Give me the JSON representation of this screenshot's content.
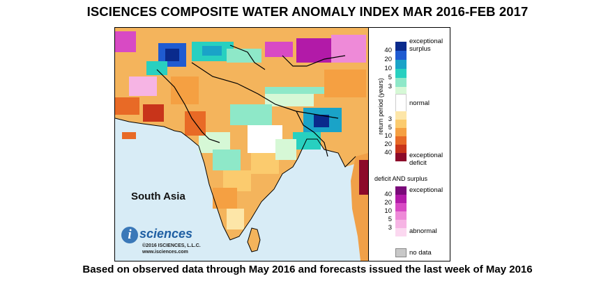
{
  "title": "ISCIENCES COMPOSITE WATER ANOMALY INDEX MAR 2016-FEB 2017",
  "caption": "Based on observed data through May 2016 and forecasts issued the last week of May 2016",
  "map": {
    "region_label": "South Asia",
    "logo": {
      "mark": "i",
      "word": "sciences",
      "copyright": "©2016  ISCIENCES, L.L.C.",
      "url": "www.isciences.com"
    }
  },
  "legend": {
    "axis_label": "return period (years)",
    "surplus_label_1": "exceptional",
    "surplus_label_2": "surplus",
    "normal_label": "normal",
    "deficit_label_1": "exceptional",
    "deficit_label_2": "deficit",
    "combo_title": "deficit AND surplus",
    "combo_top_label": "exceptional",
    "combo_bottom_label": "abnormal",
    "nodata_label": "no data",
    "surplus_ticks": [
      "40",
      "20",
      "10",
      "5",
      "3"
    ],
    "deficit_ticks": [
      "3",
      "5",
      "10",
      "20",
      "40"
    ],
    "combo_ticks": [
      "40",
      "20",
      "10",
      "5",
      "3"
    ],
    "surplus_colors": [
      "#0a2a8c",
      "#1f5bd1",
      "#1aa3c8",
      "#28d0c0",
      "#8ee8c8",
      "#d6f8d6"
    ],
    "deficit_colors": [
      "#fde6a8",
      "#fbcb6e",
      "#f5a042",
      "#e86a26",
      "#c8341a",
      "#8c0a2a"
    ],
    "combo_colors": [
      "#7a0a7a",
      "#b21aa8",
      "#d84ac4",
      "#ee8ad8",
      "#f6b4e4",
      "#fbd8f0"
    ],
    "normal_color": "#ffffff",
    "nodata_color": "#c8c8c8"
  }
}
